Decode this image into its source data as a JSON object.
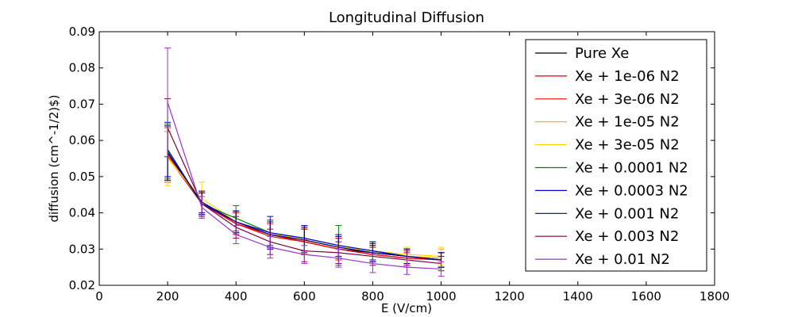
{
  "chart_data": {
    "type": "line",
    "title": "Longitudinal Diffusion",
    "xlabel": "E (V/cm)",
    "ylabel": "diffusion (cm^-1/2)$)",
    "xlim": [
      0,
      1800
    ],
    "ylim": [
      0.02,
      0.09
    ],
    "xticks": [
      "0",
      "200",
      "400",
      "600",
      "800",
      "1000",
      "1200",
      "1400",
      "1600",
      "1800"
    ],
    "yticks": [
      "0.02",
      "0.03",
      "0.04",
      "0.05",
      "0.06",
      "0.07",
      "0.08",
      "0.09"
    ],
    "x": [
      200,
      300,
      400,
      500,
      600,
      700,
      800,
      900,
      1000
    ],
    "grid": false,
    "legend_position": "top-right",
    "series": [
      {
        "name": "Pure Xe",
        "color": "#000000",
        "values": [
          0.0565,
          0.0425,
          0.0375,
          0.034,
          0.032,
          0.03,
          0.029,
          0.028,
          0.027
        ],
        "errors": [
          0.0075,
          0.003,
          0.003,
          0.0035,
          0.0035,
          0.003,
          0.002,
          0.002,
          0.002
        ]
      },
      {
        "name": "Xe + 1e-06 N2",
        "color": "#dd0000",
        "values": [
          0.0555,
          0.0425,
          0.037,
          0.034,
          0.032,
          0.03,
          0.0285,
          0.0275,
          0.027
        ],
        "errors": [
          0.007,
          0.003,
          0.003,
          0.0035,
          0.0035,
          0.003,
          0.002,
          0.002,
          0.002
        ]
      },
      {
        "name": "Xe + 3e-06 N2",
        "color": "#ff0000",
        "values": [
          0.056,
          0.0425,
          0.037,
          0.0335,
          0.032,
          0.03,
          0.0285,
          0.0275,
          0.027
        ],
        "errors": [
          0.0075,
          0.003,
          0.003,
          0.0035,
          0.0035,
          0.003,
          0.002,
          0.002,
          0.002
        ]
      },
      {
        "name": "Xe + 1e-05 N2",
        "color": "#ffa500",
        "values": [
          0.0555,
          0.043,
          0.0375,
          0.034,
          0.0325,
          0.0305,
          0.0295,
          0.028,
          0.0275
        ],
        "errors": [
          0.007,
          0.003,
          0.003,
          0.0035,
          0.0035,
          0.003,
          0.0025,
          0.002,
          0.0025
        ]
      },
      {
        "name": "Xe + 3e-05 N2",
        "color": "#ffd700",
        "values": [
          0.055,
          0.044,
          0.0375,
          0.0345,
          0.0325,
          0.0305,
          0.0295,
          0.0285,
          0.028
        ],
        "errors": [
          0.0075,
          0.0045,
          0.003,
          0.0035,
          0.0035,
          0.003,
          0.0025,
          0.002,
          0.0025
        ]
      },
      {
        "name": "Xe + 0.0001 N2",
        "color": "#008000",
        "values": [
          0.057,
          0.0425,
          0.0385,
          0.0345,
          0.033,
          0.031,
          0.0295,
          0.028,
          0.027
        ],
        "errors": [
          0.0075,
          0.003,
          0.0035,
          0.0035,
          0.0035,
          0.0055,
          0.0025,
          0.002,
          0.002
        ]
      },
      {
        "name": "Xe + 0.0003 N2",
        "color": "#0000cc",
        "values": [
          0.0575,
          0.0425,
          0.0375,
          0.0345,
          0.033,
          0.031,
          0.0295,
          0.028,
          0.027
        ],
        "errors": [
          0.0075,
          0.003,
          0.003,
          0.0045,
          0.0035,
          0.003,
          0.0025,
          0.002,
          0.002
        ]
      },
      {
        "name": "Xe + 0.001 N2",
        "color": "#00008b",
        "values": [
          0.0565,
          0.043,
          0.0375,
          0.034,
          0.0325,
          0.0305,
          0.029,
          0.028,
          0.027
        ],
        "errors": [
          0.0075,
          0.003,
          0.003,
          0.0035,
          0.0035,
          0.003,
          0.0025,
          0.002,
          0.002
        ]
      },
      {
        "name": "Xe + 0.003 N2",
        "color": "#800040",
        "values": [
          0.0635,
          0.0425,
          0.036,
          0.032,
          0.0295,
          0.029,
          0.028,
          0.027,
          0.026
        ],
        "errors": [
          0.008,
          0.0035,
          0.003,
          0.0035,
          0.003,
          0.003,
          0.0025,
          0.002,
          0.002
        ]
      },
      {
        "name": "Xe + 0.01 N2",
        "color": "#9932cc",
        "values": [
          0.0705,
          0.0415,
          0.034,
          0.0305,
          0.0285,
          0.0275,
          0.026,
          0.025,
          0.0245
        ],
        "errors": [
          0.015,
          0.003,
          0.0025,
          0.003,
          0.0025,
          0.0025,
          0.0025,
          0.002,
          0.002
        ]
      }
    ]
  }
}
